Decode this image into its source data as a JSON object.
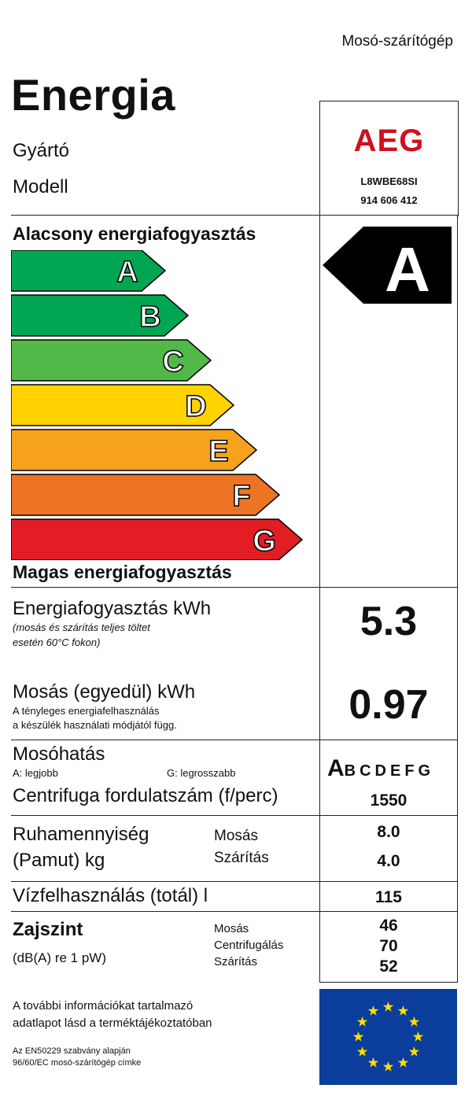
{
  "header": {
    "appliance_type": "Mosó-szárítógép",
    "title": "Energia",
    "manufacturer_label": "Gyártó",
    "model_label": "Modell"
  },
  "brand": {
    "name": "AEG",
    "model_line1": "L8WBE68SI",
    "model_line2": "914 606 412",
    "color": "#d0101e"
  },
  "scale": {
    "low_label": "Alacsony energiafogyasztás",
    "high_label": "Magas energiafogyasztás",
    "classes": [
      {
        "letter": "A",
        "color": "#00a651"
      },
      {
        "letter": "B",
        "color": "#00a651"
      },
      {
        "letter": "C",
        "color": "#52b848"
      },
      {
        "letter": "D",
        "color": "#ffd200"
      },
      {
        "letter": "E",
        "color": "#f6a21c"
      },
      {
        "letter": "F",
        "color": "#ed7424"
      },
      {
        "letter": "G",
        "color": "#e21d24"
      }
    ],
    "rating": "A"
  },
  "energy": {
    "label": "Energiafogyasztás kWh",
    "note1": "(mosás és szárítás teljes töltet",
    "note2": "esetén 60°C fokon)",
    "value": "5.3"
  },
  "washing": {
    "label": "Mosás (egyedül)  kWh",
    "note1": "A tényleges energiafelhasználás",
    "note2": "a készülék használati módjától függ.",
    "value": "0.97"
  },
  "wash_perf": {
    "label": "Mosóhatás",
    "best": "A: legjobb",
    "worst": "G: legrosszabb",
    "scale_first": "A",
    "scale_rest": "BCDEFG"
  },
  "spin": {
    "label": "Centrifuga fordulatszám (f/perc)",
    "value": "1550"
  },
  "capacity": {
    "label1": "Ruhamennyiség",
    "label2": "(Pamut) kg",
    "wash_label": "Mosás",
    "dry_label": "Szárítás",
    "wash_value": "8.0",
    "dry_value": "4.0"
  },
  "water": {
    "label": "Vízfelhasználás (totál) l",
    "value": "115"
  },
  "noise": {
    "label": "Zajszint",
    "unit": "(dB(A) re 1 pW)",
    "wash_label": "Mosás",
    "spin_label": "Centrifugálás",
    "dry_label": "Szárítás",
    "wash_value": "46",
    "spin_value": "70",
    "dry_value": "52"
  },
  "footer": {
    "info1": "A további információkat tartalmazó",
    "info2": "adatlapot lásd a terméktájékoztatóban",
    "std1": "Az EN50229 szabvány alapján",
    "std2": "96/60/EC mosó-szárítógép címke"
  },
  "eu_flag": {
    "background": "#0b3d9c",
    "star_color": "#ffdd00"
  }
}
